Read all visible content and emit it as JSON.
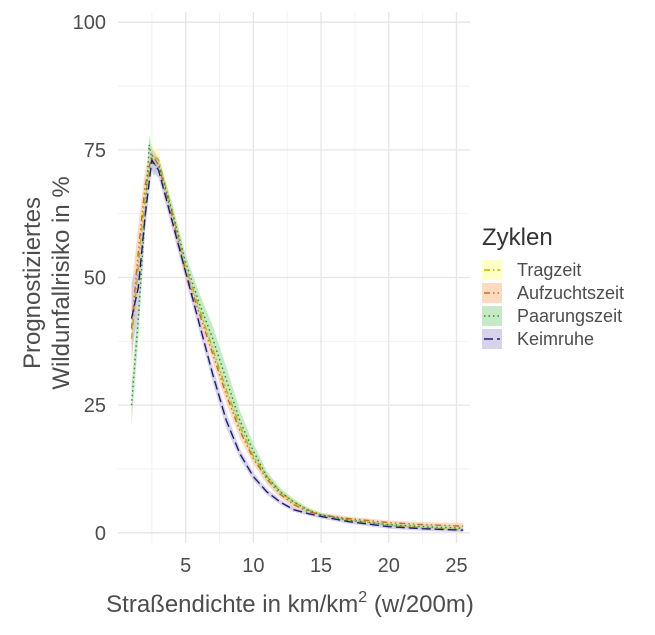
{
  "chart_data": {
    "type": "line",
    "title": "",
    "xlabel": "Straßendichte in km/km",
    "xlabel_sup": "2",
    "xlabel_suffix": " (w/200m)",
    "ylabel_line1": "Prognostiziertes",
    "ylabel_line2": "Wildunfallrisiko in %",
    "xlim": [
      0,
      26
    ],
    "ylim": [
      -2,
      102
    ],
    "xticks": [
      "5",
      "10",
      "15",
      "20",
      "25"
    ],
    "yticks": [
      "0",
      "25",
      "50",
      "75",
      "100"
    ],
    "grid": true,
    "legend": {
      "title": "Zyklen",
      "position": "right"
    },
    "series": [
      {
        "name": "Tragzeit",
        "color": "#b8b800",
        "band_color": "#ffffb3",
        "dash": "dashdot",
        "points": [
          [
            1.0,
            38
          ],
          [
            1.5,
            52
          ],
          [
            2.0,
            66
          ],
          [
            2.5,
            74
          ],
          [
            3.0,
            73
          ],
          [
            4.0,
            63
          ],
          [
            5.0,
            52
          ],
          [
            6.0,
            44
          ],
          [
            7.0,
            36
          ],
          [
            8.0,
            28
          ],
          [
            9.0,
            21
          ],
          [
            10.0,
            15
          ],
          [
            11.0,
            11
          ],
          [
            12.0,
            8
          ],
          [
            13.0,
            6
          ],
          [
            14.0,
            4.5
          ],
          [
            15.0,
            3.5
          ],
          [
            17.0,
            2.5
          ],
          [
            20.0,
            1.5
          ],
          [
            22.5,
            1.0
          ],
          [
            25.5,
            0.6
          ]
        ],
        "band_lower": [
          33,
          48,
          63,
          72,
          71.5,
          61.5,
          50.5,
          42.5,
          34.5,
          26.5,
          19.5,
          14,
          10,
          7.3,
          5.4,
          4,
          3.1,
          2.2,
          1.2,
          0.7,
          0.3
        ],
        "band_upper": [
          43,
          56,
          69,
          76,
          74.5,
          64.5,
          53.5,
          45.5,
          37.5,
          29.5,
          22.5,
          16,
          12,
          8.7,
          6.6,
          5,
          3.9,
          2.8,
          1.8,
          1.3,
          0.9
        ]
      },
      {
        "name": "Aufzuchtszeit",
        "color": "#d2691e",
        "band_color": "#fdcdac",
        "dash": "dashdotdot",
        "points": [
          [
            1.0,
            40
          ],
          [
            1.5,
            55
          ],
          [
            2.0,
            68
          ],
          [
            2.5,
            74
          ],
          [
            3.0,
            72
          ],
          [
            4.0,
            62
          ],
          [
            5.0,
            51
          ],
          [
            6.0,
            43
          ],
          [
            7.0,
            35
          ],
          [
            8.0,
            27
          ],
          [
            9.0,
            20
          ],
          [
            10.0,
            14.5
          ],
          [
            11.0,
            10.5
          ],
          [
            12.0,
            7.5
          ],
          [
            13.0,
            5.5
          ],
          [
            14.0,
            4.2
          ],
          [
            15.0,
            3.5
          ],
          [
            17.0,
            2.8
          ],
          [
            20.0,
            2.0
          ],
          [
            22.5,
            1.6
          ],
          [
            25.5,
            1.3
          ]
        ],
        "band_lower": [
          32,
          50,
          65,
          72.5,
          70.5,
          60.5,
          49.5,
          41.5,
          33.5,
          25.5,
          18.5,
          13.5,
          9.5,
          6.8,
          4.8,
          3.7,
          3.1,
          2.4,
          1.6,
          1.1,
          0.7
        ],
        "band_upper": [
          48,
          60,
          71,
          75.5,
          73.5,
          63.5,
          52.5,
          44.5,
          36.5,
          28.5,
          21.5,
          15.5,
          11.5,
          8.2,
          6.2,
          4.7,
          3.9,
          3.2,
          2.4,
          2.1,
          1.9
        ]
      },
      {
        "name": "Paarungszeit",
        "color": "#2e8b2e",
        "band_color": "#b3e2b3",
        "dash": "dotted",
        "points": [
          [
            1.0,
            25
          ],
          [
            1.5,
            42
          ],
          [
            2.0,
            62
          ],
          [
            2.3,
            76
          ],
          [
            2.6,
            72
          ],
          [
            3.0,
            72
          ],
          [
            4.0,
            63
          ],
          [
            5.0,
            53
          ],
          [
            6.0,
            45
          ],
          [
            7.0,
            38
          ],
          [
            8.0,
            30
          ],
          [
            9.0,
            22
          ],
          [
            10.0,
            16
          ],
          [
            11.0,
            11
          ],
          [
            12.0,
            8
          ],
          [
            13.0,
            6
          ],
          [
            14.0,
            4.5
          ],
          [
            15.0,
            3.5
          ],
          [
            17.0,
            2.5
          ],
          [
            20.0,
            1.6
          ],
          [
            22.5,
            1.2
          ],
          [
            25.5,
            0.9
          ]
        ],
        "band_lower": [
          21,
          38,
          59,
          73,
          70,
          70.5,
          61.5,
          51.5,
          43,
          35.5,
          27.5,
          20,
          14.5,
          10,
          7.3,
          5.4,
          4,
          3.1,
          2.1,
          1.2,
          0.7,
          0.4
        ],
        "band_upper": [
          29,
          46,
          65,
          78,
          74,
          73.5,
          64.5,
          54.5,
          47,
          40.5,
          32.5,
          24,
          17.5,
          12,
          8.7,
          6.6,
          5,
          3.9,
          2.9,
          2.0,
          1.7,
          1.4
        ]
      },
      {
        "name": "Keimruhe",
        "color": "#1f1f7a",
        "band_color": "#cbc3e3",
        "dash": "longdash",
        "points": [
          [
            1.0,
            42
          ],
          [
            1.5,
            48
          ],
          [
            2.0,
            62
          ],
          [
            2.5,
            73
          ],
          [
            3.0,
            71
          ],
          [
            4.0,
            61
          ],
          [
            5.0,
            51
          ],
          [
            6.0,
            41
          ],
          [
            7.0,
            31
          ],
          [
            8.0,
            22
          ],
          [
            9.0,
            15.5
          ],
          [
            10.0,
            11
          ],
          [
            11.0,
            8
          ],
          [
            12.0,
            6
          ],
          [
            13.0,
            4.5
          ],
          [
            14.0,
            3.8
          ],
          [
            15.0,
            3.2
          ],
          [
            17.0,
            2.2
          ],
          [
            20.0,
            1.2
          ],
          [
            22.5,
            0.8
          ],
          [
            25.5,
            0.5
          ]
        ],
        "band_lower": [
          35,
          43,
          59,
          71,
          69.5,
          59.5,
          49.5,
          39.5,
          29.5,
          20.5,
          14.5,
          10.2,
          7.4,
          5.5,
          4.1,
          3.4,
          2.8,
          1.8,
          0.8,
          0.4,
          0.1
        ],
        "band_upper": [
          49,
          53,
          65,
          75,
          72.5,
          62.5,
          52.5,
          42.5,
          32.5,
          23.5,
          16.5,
          11.8,
          8.6,
          6.5,
          4.9,
          4.2,
          3.6,
          2.6,
          1.6,
          1.2,
          0.9
        ]
      }
    ]
  }
}
